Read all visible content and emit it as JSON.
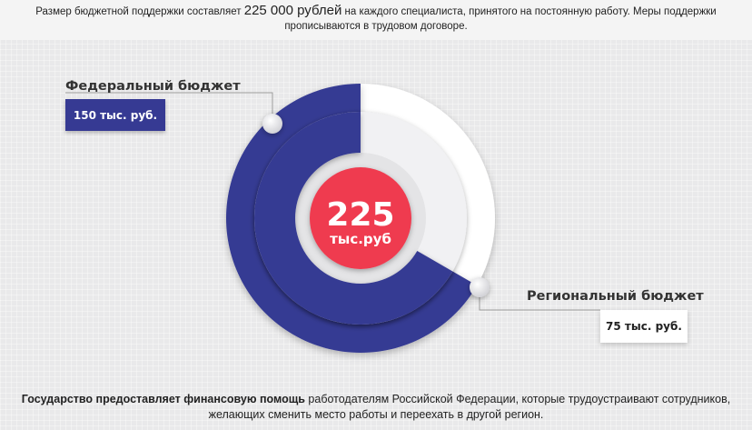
{
  "top_text": {
    "part1": "Размер бюджетной поддержки составляет ",
    "highlight": "225 000 рублей",
    "part2": " на каждого специалиста, принятого на постоянную работу. Меры поддержки прописываются в трудовом договоре."
  },
  "bottom_text": {
    "bold": "Государство предоставляет финансовую помощь",
    "rest": " работодателям Российской Федерации, которые трудоустраивают сотрудников, желающих сменить место работы и переехать в другой регион."
  },
  "chart_data": {
    "type": "pie",
    "total_value": "225",
    "total_unit": "тыс.руб",
    "series": [
      {
        "name": "Федеральный бюджет",
        "value": 150,
        "label": "150 тыс. руб.",
        "color": "#363a93"
      },
      {
        "name": "Региональный бюджет",
        "value": 75,
        "label": "75 тыс. руб.",
        "color": "#ffffff"
      }
    ]
  },
  "colors": {
    "federal": "#363a93",
    "regional": "#ffffff",
    "center": "#ef3b50",
    "connector": "#9a9a9a"
  }
}
